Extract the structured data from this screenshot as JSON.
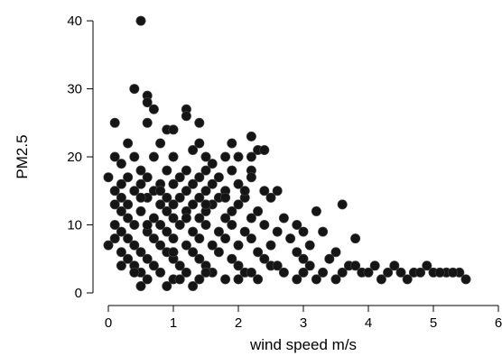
{
  "chart_data": {
    "type": "scatter",
    "title": "",
    "xlabel": "wind speed m/s",
    "ylabel": "PM2.5",
    "xlim": [
      0,
      6
    ],
    "ylim": [
      0,
      42
    ],
    "xticks": [
      0,
      1,
      2,
      3,
      4,
      5,
      6
    ],
    "yticks": [
      0,
      10,
      20,
      30,
      40
    ],
    "grid": false,
    "legend": "none",
    "marker_color": "#151515",
    "series": [
      {
        "points": [
          [
            0.5,
            40
          ],
          [
            0.4,
            30
          ],
          [
            0.6,
            29
          ],
          [
            0.7,
            27
          ],
          [
            1.2,
            27
          ],
          [
            0.6,
            28
          ],
          [
            1.2,
            26
          ],
          [
            1.4,
            25
          ],
          [
            0.1,
            25
          ],
          [
            0.6,
            25
          ],
          [
            2.2,
            23
          ],
          [
            0.9,
            24
          ],
          [
            1.0,
            24
          ],
          [
            0.3,
            22
          ],
          [
            0.8,
            22
          ],
          [
            1.4,
            22
          ],
          [
            1.9,
            22
          ],
          [
            2.3,
            21
          ],
          [
            2.4,
            21
          ],
          [
            2.2,
            20
          ],
          [
            0.1,
            20
          ],
          [
            0.4,
            20
          ],
          [
            0.7,
            20
          ],
          [
            1.0,
            20
          ],
          [
            1.5,
            20
          ],
          [
            1.8,
            20
          ],
          [
            2.0,
            20
          ],
          [
            1.3,
            21
          ],
          [
            1.6,
            19
          ],
          [
            0.2,
            19
          ],
          [
            0.5,
            18
          ],
          [
            0.9,
            18
          ],
          [
            1.2,
            18
          ],
          [
            1.5,
            18
          ],
          [
            1.9,
            18
          ],
          [
            2.2,
            18
          ],
          [
            0.0,
            17
          ],
          [
            0.3,
            17
          ],
          [
            0.6,
            17
          ],
          [
            1.1,
            17
          ],
          [
            1.4,
            17
          ],
          [
            1.7,
            17
          ],
          [
            2.2,
            17
          ],
          [
            0.2,
            16
          ],
          [
            0.5,
            16
          ],
          [
            0.8,
            16
          ],
          [
            1.0,
            16
          ],
          [
            1.3,
            16
          ],
          [
            1.6,
            16
          ],
          [
            2.0,
            16
          ],
          [
            0.1,
            15
          ],
          [
            0.4,
            15
          ],
          [
            0.7,
            15
          ],
          [
            1.2,
            15
          ],
          [
            1.5,
            15
          ],
          [
            1.8,
            15
          ],
          [
            2.4,
            15
          ],
          [
            2.6,
            15
          ],
          [
            0.2,
            14
          ],
          [
            0.6,
            14
          ],
          [
            0.9,
            14
          ],
          [
            1.1,
            14
          ],
          [
            1.4,
            14
          ],
          [
            1.7,
            14
          ],
          [
            2.1,
            14
          ],
          [
            2.5,
            14
          ],
          [
            0.1,
            13
          ],
          [
            0.3,
            13
          ],
          [
            0.8,
            13
          ],
          [
            1.0,
            13
          ],
          [
            1.3,
            13
          ],
          [
            1.6,
            13
          ],
          [
            2.0,
            13
          ],
          [
            3.6,
            13
          ],
          [
            0.2,
            12
          ],
          [
            0.5,
            12
          ],
          [
            0.9,
            12
          ],
          [
            1.2,
            12
          ],
          [
            1.5,
            12
          ],
          [
            1.9,
            12
          ],
          [
            2.3,
            12
          ],
          [
            3.2,
            12
          ],
          [
            0.3,
            11
          ],
          [
            0.7,
            11
          ],
          [
            1.0,
            11
          ],
          [
            1.4,
            11
          ],
          [
            1.8,
            11
          ],
          [
            2.2,
            11
          ],
          [
            2.7,
            11
          ],
          [
            0.1,
            10
          ],
          [
            0.4,
            10
          ],
          [
            0.8,
            10
          ],
          [
            1.1,
            10
          ],
          [
            1.5,
            10
          ],
          [
            1.9,
            10
          ],
          [
            2.4,
            10
          ],
          [
            2.9,
            10
          ],
          [
            3.0,
            9
          ],
          [
            0.2,
            9
          ],
          [
            0.6,
            9
          ],
          [
            0.9,
            9
          ],
          [
            1.3,
            9
          ],
          [
            1.7,
            9
          ],
          [
            2.1,
            9
          ],
          [
            2.6,
            9
          ],
          [
            3.3,
            9
          ],
          [
            0.3,
            8
          ],
          [
            0.7,
            8
          ],
          [
            1.0,
            8
          ],
          [
            1.4,
            8
          ],
          [
            1.8,
            8
          ],
          [
            2.2,
            8
          ],
          [
            2.8,
            8
          ],
          [
            3.8,
            8
          ],
          [
            0.0,
            7
          ],
          [
            0.4,
            7
          ],
          [
            0.8,
            7
          ],
          [
            1.2,
            7
          ],
          [
            1.6,
            7
          ],
          [
            2.0,
            7
          ],
          [
            2.5,
            7
          ],
          [
            3.1,
            7
          ],
          [
            0.2,
            6
          ],
          [
            0.5,
            6
          ],
          [
            0.9,
            6
          ],
          [
            1.3,
            6
          ],
          [
            1.7,
            6
          ],
          [
            2.3,
            6
          ],
          [
            2.9,
            6
          ],
          [
            3.5,
            6
          ],
          [
            0.3,
            5
          ],
          [
            0.6,
            5
          ],
          [
            1.0,
            5
          ],
          [
            1.4,
            5
          ],
          [
            1.9,
            5
          ],
          [
            2.4,
            5
          ],
          [
            3.0,
            5
          ],
          [
            3.4,
            5
          ],
          [
            0.4,
            4
          ],
          [
            0.7,
            4
          ],
          [
            1.1,
            4
          ],
          [
            1.5,
            4
          ],
          [
            2.0,
            4
          ],
          [
            2.5,
            4
          ],
          [
            3.1,
            4
          ],
          [
            3.7,
            4
          ],
          [
            4.1,
            4
          ],
          [
            4.4,
            4
          ],
          [
            4.9,
            4
          ],
          [
            0.5,
            3
          ],
          [
            0.8,
            3
          ],
          [
            1.2,
            3
          ],
          [
            1.6,
            3
          ],
          [
            2.1,
            3
          ],
          [
            2.7,
            3
          ],
          [
            3.3,
            3
          ],
          [
            3.9,
            3
          ],
          [
            4.3,
            3
          ],
          [
            4.7,
            3
          ],
          [
            5.0,
            3
          ],
          [
            5.2,
            3
          ],
          [
            5.4,
            3
          ],
          [
            0.6,
            2
          ],
          [
            1.0,
            2
          ],
          [
            1.4,
            2
          ],
          [
            1.8,
            2
          ],
          [
            2.3,
            2
          ],
          [
            2.9,
            2
          ],
          [
            3.5,
            2
          ],
          [
            4.2,
            2
          ],
          [
            4.6,
            2
          ],
          [
            5.5,
            2
          ],
          [
            0.5,
            1
          ],
          [
            0.9,
            1
          ],
          [
            1.3,
            1
          ],
          [
            0.2,
            4
          ],
          [
            0.4,
            3
          ],
          [
            0.1,
            8
          ],
          [
            0.6,
            10
          ],
          [
            1.0,
            6
          ],
          [
            1.1,
            2
          ],
          [
            1.5,
            3
          ],
          [
            2.0,
            2
          ],
          [
            2.2,
            3
          ],
          [
            2.6,
            4
          ],
          [
            3.0,
            3
          ],
          [
            3.2,
            2
          ],
          [
            3.6,
            3
          ],
          [
            3.8,
            4
          ],
          [
            4.0,
            3
          ],
          [
            4.5,
            3
          ],
          [
            4.8,
            3
          ],
          [
            5.1,
            3
          ],
          [
            5.3,
            3
          ],
          [
            0.8,
            15
          ],
          [
            1.2,
            11
          ],
          [
            1.5,
            13
          ],
          [
            1.8,
            14
          ],
          [
            2.1,
            15
          ],
          [
            0.5,
            14
          ]
        ]
      }
    ]
  }
}
